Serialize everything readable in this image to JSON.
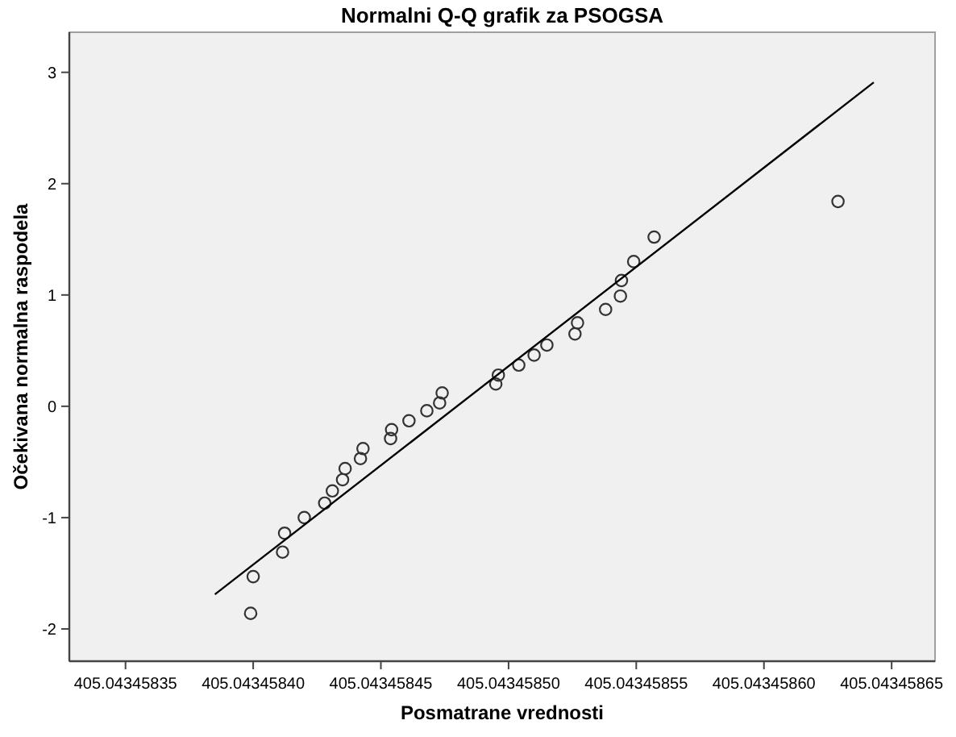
{
  "chart_data": {
    "type": "scatter",
    "title": "Normalni Q-Q grafik za PSOGSA",
    "xlabel": "Posmatrane vrednosti",
    "ylabel": "Očekivana normalna raspodela",
    "xlim": [
      405.043458328,
      405.043458667
    ],
    "xticks": [
      {
        "value": 405.04345835,
        "label": "405.04345835"
      },
      {
        "value": 405.0434584,
        "label": "405.04345840"
      },
      {
        "value": 405.04345845,
        "label": "405.04345845"
      },
      {
        "value": 405.0434585,
        "label": "405.04345850"
      },
      {
        "value": 405.04345855,
        "label": "405.04345855"
      },
      {
        "value": 405.0434586,
        "label": "405.04345860"
      },
      {
        "value": 405.04345865,
        "label": "405.04345865"
      }
    ],
    "ylim": [
      -2.29,
      3.36
    ],
    "yticks": [
      -2,
      -1,
      0,
      1,
      2,
      3
    ],
    "grid": false,
    "marker": "circle",
    "series": [
      {
        "color": "#333333",
        "x": [
          405.043458399,
          405.0434584,
          405.0434584115,
          405.0434584123,
          405.04345842,
          405.043458428,
          405.043458431,
          405.043458435,
          405.043458436,
          405.043458442,
          405.043458443,
          405.0434584538,
          405.0434584542,
          405.043458461,
          405.043458468,
          405.043458473,
          405.043458474,
          405.043458495,
          405.043458496,
          405.043458504,
          405.04345851,
          405.043458515,
          405.043458526,
          405.043458527,
          405.043458538,
          405.0434585438,
          405.0434585442,
          405.043458549,
          405.043458557,
          405.043458629
        ],
        "values": [
          -1.86,
          -1.53,
          -1.31,
          -1.14,
          -1.0,
          -0.87,
          -0.76,
          -0.66,
          -0.56,
          -0.47,
          -0.38,
          -0.29,
          -0.21,
          -0.13,
          -0.04,
          0.03,
          0.12,
          0.2,
          0.28,
          0.37,
          0.46,
          0.55,
          0.65,
          0.75,
          0.87,
          0.99,
          1.13,
          1.3,
          1.52,
          1.84
        ]
      },
      {
        "type": "line",
        "color": "#000000",
        "marker": "none",
        "line_style": "solid",
        "x": [
          405.043458385,
          405.043458643
        ],
        "values": [
          -1.69,
          2.91
        ]
      }
    ]
  }
}
